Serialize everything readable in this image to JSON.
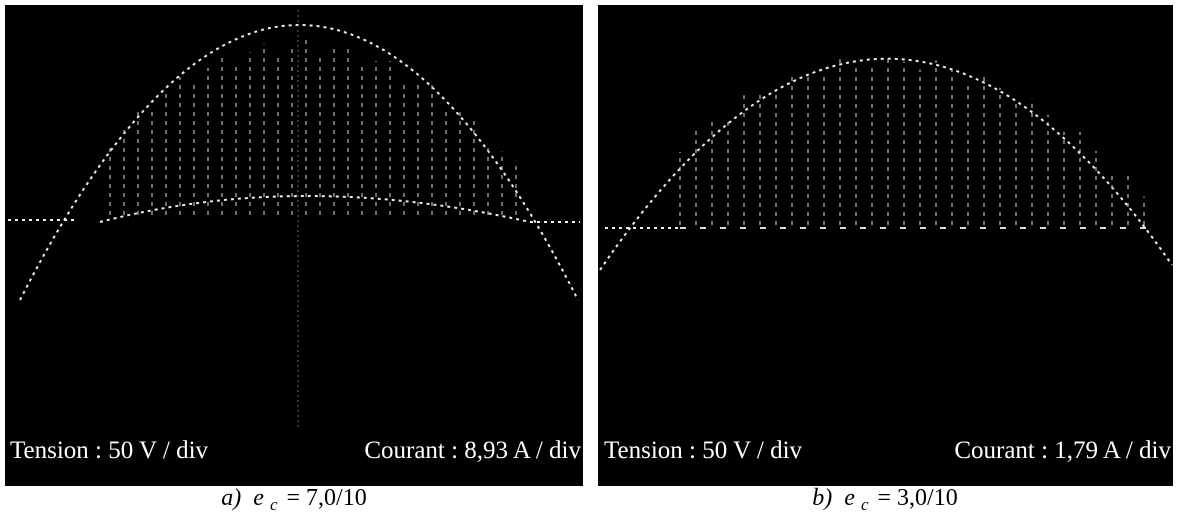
{
  "panels": [
    {
      "tension": "Tension : 50 V / div",
      "courant": "Courant : 8,93 A / div",
      "caption": {
        "label": "a)",
        "variable": "e",
        "subscript": "c",
        "value": "= 7,0/10"
      }
    },
    {
      "tension": "Tension : 50 V / div",
      "courant": "Courant : 1,79 A / div",
      "caption": {
        "label": "b)",
        "variable": "e",
        "subscript": "c",
        "value": "= 3,0/10"
      }
    }
  ]
}
